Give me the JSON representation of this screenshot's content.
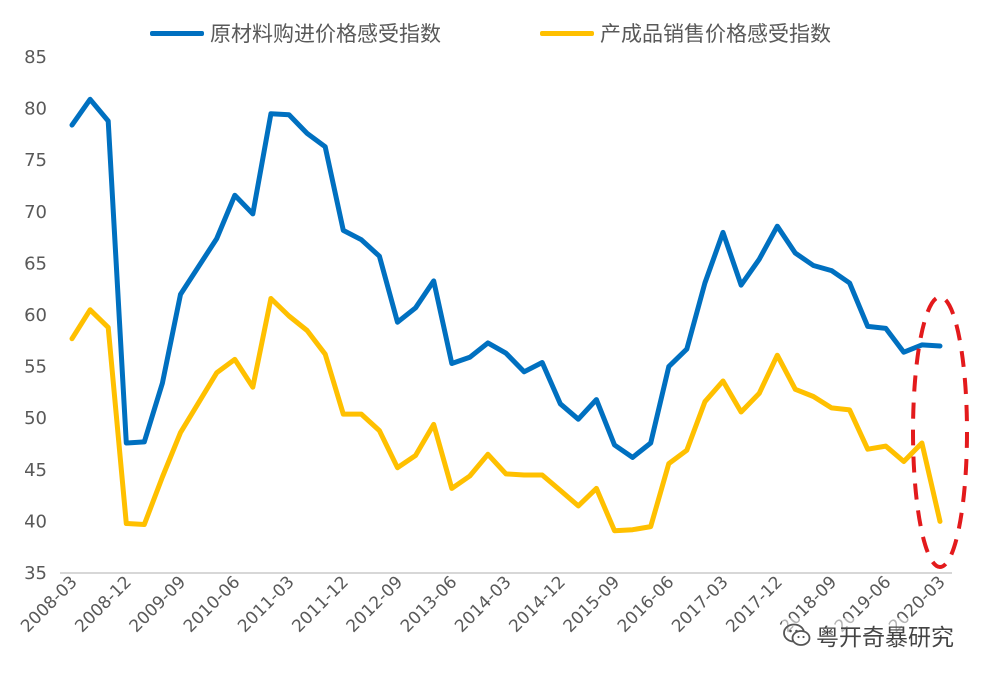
{
  "legend_position": "top-center",
  "watermark": {
    "icon": "wechat-icon",
    "text": "粤开奇暴研究"
  },
  "chart_data": {
    "type": "line",
    "title": "",
    "xlabel": "",
    "ylabel": "",
    "ylim": [
      35,
      85
    ],
    "yticks": [
      35,
      40,
      45,
      50,
      55,
      60,
      65,
      70,
      75,
      80,
      85
    ],
    "grid": false,
    "x": [
      "2008-03",
      "2008-06",
      "2008-09",
      "2008-12",
      "2009-03",
      "2009-06",
      "2009-09",
      "2009-12",
      "2010-03",
      "2010-06",
      "2010-09",
      "2010-12",
      "2011-03",
      "2011-06",
      "2011-09",
      "2011-12",
      "2012-03",
      "2012-06",
      "2012-09",
      "2012-12",
      "2013-03",
      "2013-06",
      "2013-09",
      "2013-12",
      "2014-03",
      "2014-06",
      "2014-09",
      "2014-12",
      "2015-03",
      "2015-06",
      "2015-09",
      "2015-12",
      "2016-03",
      "2016-06",
      "2016-09",
      "2016-12",
      "2017-03",
      "2017-06",
      "2017-09",
      "2017-12",
      "2018-03",
      "2018-06",
      "2018-09",
      "2018-12",
      "2019-03",
      "2019-06",
      "2019-09",
      "2019-12",
      "2020-03"
    ],
    "xtick_labels": [
      "2008-03",
      "2008-12",
      "2009-09",
      "2010-06",
      "2011-03",
      "2011-12",
      "2012-09",
      "2013-06",
      "2014-03",
      "2014-12",
      "2015-09",
      "2016-06",
      "2017-03",
      "2017-12",
      "2018-09",
      "2019-06",
      "2020-03"
    ],
    "series": [
      {
        "name": "原材料购进价格感受指数",
        "color": "#0070C0",
        "values": [
          78.4,
          80.9,
          78.8,
          47.6,
          47.7,
          53.4,
          62.0,
          64.7,
          67.4,
          71.6,
          69.8,
          79.5,
          79.4,
          77.6,
          76.3,
          68.2,
          67.3,
          65.7,
          59.3,
          60.7,
          63.3,
          55.3,
          55.9,
          57.3,
          56.3,
          54.5,
          55.4,
          51.4,
          49.9,
          51.8,
          47.4,
          46.2,
          47.6,
          55.0,
          56.7,
          63.1,
          68.0,
          62.9,
          65.4,
          68.6,
          66.0,
          64.8,
          64.3,
          63.1,
          58.9,
          58.7,
          56.4,
          57.1,
          57.0
        ]
      },
      {
        "name": "产成品销售价格感受指数",
        "color": "#FFC000",
        "values": [
          57.7,
          60.5,
          58.8,
          39.8,
          39.7,
          44.3,
          48.6,
          51.5,
          54.4,
          55.7,
          53.0,
          61.6,
          59.9,
          58.5,
          56.2,
          50.4,
          50.4,
          48.8,
          45.2,
          46.4,
          49.4,
          43.2,
          44.4,
          46.5,
          44.6,
          44.5,
          44.5,
          43.0,
          41.5,
          43.2,
          39.1,
          39.2,
          39.5,
          45.6,
          46.9,
          51.6,
          53.6,
          50.6,
          52.4,
          56.1,
          52.8,
          52.1,
          51.0,
          50.8,
          47.0,
          47.3,
          45.8,
          47.6,
          40.0
        ]
      }
    ],
    "annotation": {
      "type": "dashed-ellipse",
      "color": "#E31A1C",
      "target_category": "2020-03"
    }
  }
}
